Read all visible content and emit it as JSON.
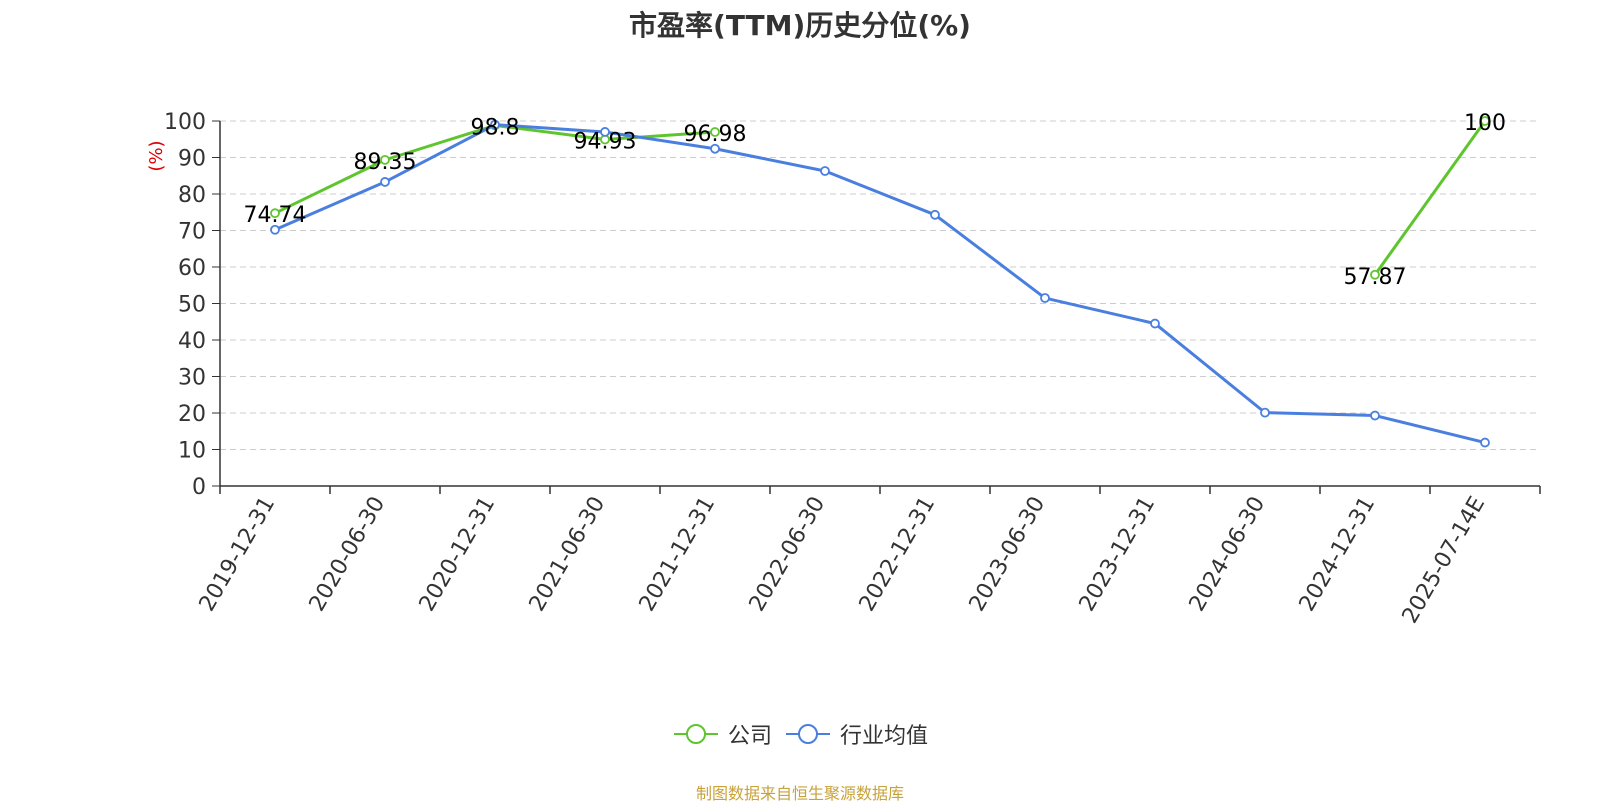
{
  "title": "市盈率(TTM)历史分位(%)",
  "source_note": "制图数据来自恒生聚源数据库",
  "colors": {
    "company": "#5fc52e",
    "industry": "#4a7fe0",
    "grid": "#cccccc",
    "axis": "#333333",
    "ylabel": "#e00000",
    "source": "#c8a23a"
  },
  "chart_data": {
    "type": "line",
    "title": "市盈率(TTM)历史分位(%)",
    "ylabel": "(%)",
    "xlabel": "",
    "ylim": [
      0,
      100
    ],
    "yticks": [
      0,
      10,
      20,
      30,
      40,
      50,
      60,
      70,
      80,
      90,
      100
    ],
    "grid": true,
    "legend_position": "bottom-center",
    "categories": [
      "2019-12-31",
      "2020-06-30",
      "2020-12-31",
      "2021-06-30",
      "2021-12-31",
      "2022-06-30",
      "2022-12-31",
      "2023-06-30",
      "2023-12-31",
      "2024-06-30",
      "2024-12-31",
      "2025-07-14E"
    ],
    "series": [
      {
        "name": "公司",
        "color": "#5fc52e",
        "values": [
          74.74,
          89.35,
          98.8,
          94.93,
          96.98,
          null,
          null,
          null,
          null,
          null,
          57.87,
          100
        ],
        "labels": [
          "74.74",
          "89.35",
          "98.8",
          "94.93",
          "96.98",
          null,
          null,
          null,
          null,
          null,
          "57.87",
          "100"
        ]
      },
      {
        "name": "行业均值",
        "color": "#4a7fe0",
        "values": [
          70.2,
          83.3,
          99.0,
          97.0,
          92.4,
          86.3,
          74.3,
          51.5,
          44.5,
          20.1,
          19.3,
          11.9
        ]
      }
    ]
  }
}
